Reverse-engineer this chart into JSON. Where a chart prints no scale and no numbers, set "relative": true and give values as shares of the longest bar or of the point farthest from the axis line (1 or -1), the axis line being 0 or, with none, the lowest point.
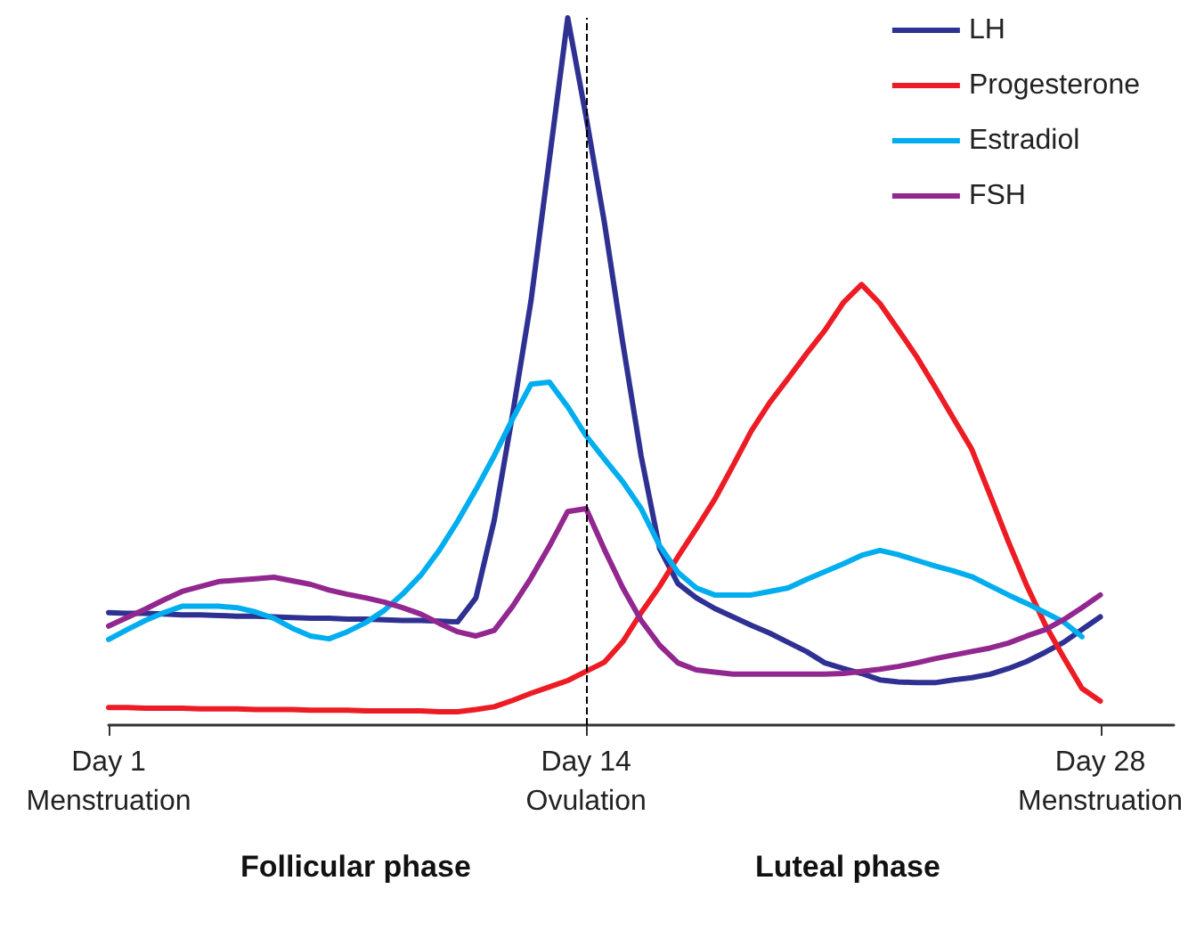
{
  "chart_data": {
    "type": "line",
    "relative": true,
    "categories": [
      "Day 1\nMenstruation",
      null,
      null,
      null,
      null,
      null,
      null,
      null,
      null,
      null,
      null,
      null,
      null,
      null,
      null,
      null,
      null,
      null,
      null,
      null,
      null,
      null,
      null,
      null,
      null,
      null,
      "Day 14\nOvulation",
      null,
      null,
      null,
      null,
      null,
      null,
      null,
      null,
      null,
      null,
      null,
      null,
      null,
      null,
      null,
      null,
      null,
      null,
      null,
      null,
      null,
      null,
      null,
      null,
      null,
      null,
      null,
      "Day 28\nMenstruation",
      null,
      null,
      null,
      null
    ],
    "series": [
      {
        "name": "LH",
        "color": "#2e3192",
        "values": [
          0.159,
          0.158,
          0.158,
          0.157,
          0.156,
          0.156,
          0.155,
          0.154,
          0.154,
          0.153,
          0.152,
          0.151,
          0.151,
          0.15,
          0.15,
          0.149,
          0.148,
          0.148,
          0.147,
          0.146,
          0.18,
          0.29,
          0.44,
          0.6,
          0.8,
          1,
          0.86,
          0.71,
          0.54,
          0.38,
          0.25,
          0.2,
          0.18,
          0.165,
          0.153,
          0.141,
          0.13,
          0.117,
          0.104,
          0.088,
          0.08,
          0.073,
          0.064,
          0.061,
          0.06,
          0.06,
          0.064,
          0.067,
          0.072,
          0.08,
          0.09,
          0.103,
          0.117,
          0.135,
          0.153,
          null,
          null,
          null,
          null
        ]
      },
      {
        "name": "Progesterone",
        "color": "#ed1c24",
        "values": [
          0.025,
          0.025,
          0.024,
          0.024,
          0.024,
          0.023,
          0.023,
          0.023,
          0.022,
          0.022,
          0.022,
          0.021,
          0.021,
          0.021,
          0.02,
          0.02,
          0.02,
          0.02,
          0.019,
          0.019,
          0.022,
          0.026,
          0.035,
          0.045,
          0.054,
          0.063,
          0.076,
          0.089,
          0.118,
          0.159,
          0.196,
          0.238,
          0.278,
          0.319,
          0.367,
          0.416,
          0.456,
          0.49,
          0.525,
          0.558,
          0.597,
          0.623,
          0.596,
          0.559,
          0.521,
          0.478,
          0.434,
          0.39,
          0.325,
          0.259,
          0.197,
          0.142,
          0.096,
          0.052,
          0.034,
          null,
          null,
          null,
          null
        ]
      },
      {
        "name": "Estradiol",
        "color": "#00aeef",
        "values": [
          0.121,
          0.135,
          0.148,
          0.159,
          0.168,
          0.168,
          0.168,
          0.166,
          0.16,
          0.151,
          0.137,
          0.126,
          0.122,
          0.132,
          0.145,
          0.162,
          0.185,
          0.212,
          0.247,
          0.288,
          0.333,
          0.381,
          0.433,
          0.482,
          0.485,
          0.45,
          0.409,
          0.376,
          0.344,
          0.306,
          0.254,
          0.216,
          0.194,
          0.184,
          0.184,
          0.184,
          0.189,
          0.194,
          0.206,
          0.217,
          0.228,
          0.24,
          0.247,
          0.241,
          0.233,
          0.225,
          0.218,
          0.21,
          0.197,
          0.184,
          0.172,
          0.159,
          0.146,
          0.125,
          null,
          null,
          null,
          null,
          null
        ]
      },
      {
        "name": "FSH",
        "color": "#92278f",
        "values": [
          0.14,
          0.152,
          0.164,
          0.177,
          0.189,
          0.196,
          0.203,
          0.205,
          0.207,
          0.209,
          0.204,
          0.199,
          0.191,
          0.185,
          0.18,
          0.174,
          0.166,
          0.157,
          0.144,
          0.132,
          0.126,
          0.134,
          0.168,
          0.208,
          0.253,
          0.302,
          0.306,
          0.248,
          0.194,
          0.148,
          0.113,
          0.088,
          0.078,
          0.075,
          0.072,
          0.072,
          0.072,
          0.072,
          0.072,
          0.072,
          0.073,
          0.076,
          0.079,
          0.083,
          0.088,
          0.094,
          0.099,
          0.104,
          0.109,
          0.116,
          0.126,
          0.135,
          0.149,
          0.166,
          0.184,
          null,
          null,
          null,
          null
        ]
      }
    ],
    "ref_lines": [
      {
        "axis": "x",
        "value": "Day 14\nOvulation",
        "color": "#000000",
        "line_style": "dashed"
      }
    ],
    "annotations": [
      "Follicular phase",
      "Luteal phase"
    ],
    "legend": "top right",
    "grid": false,
    "marker": "none",
    "line_style": "solid"
  }
}
